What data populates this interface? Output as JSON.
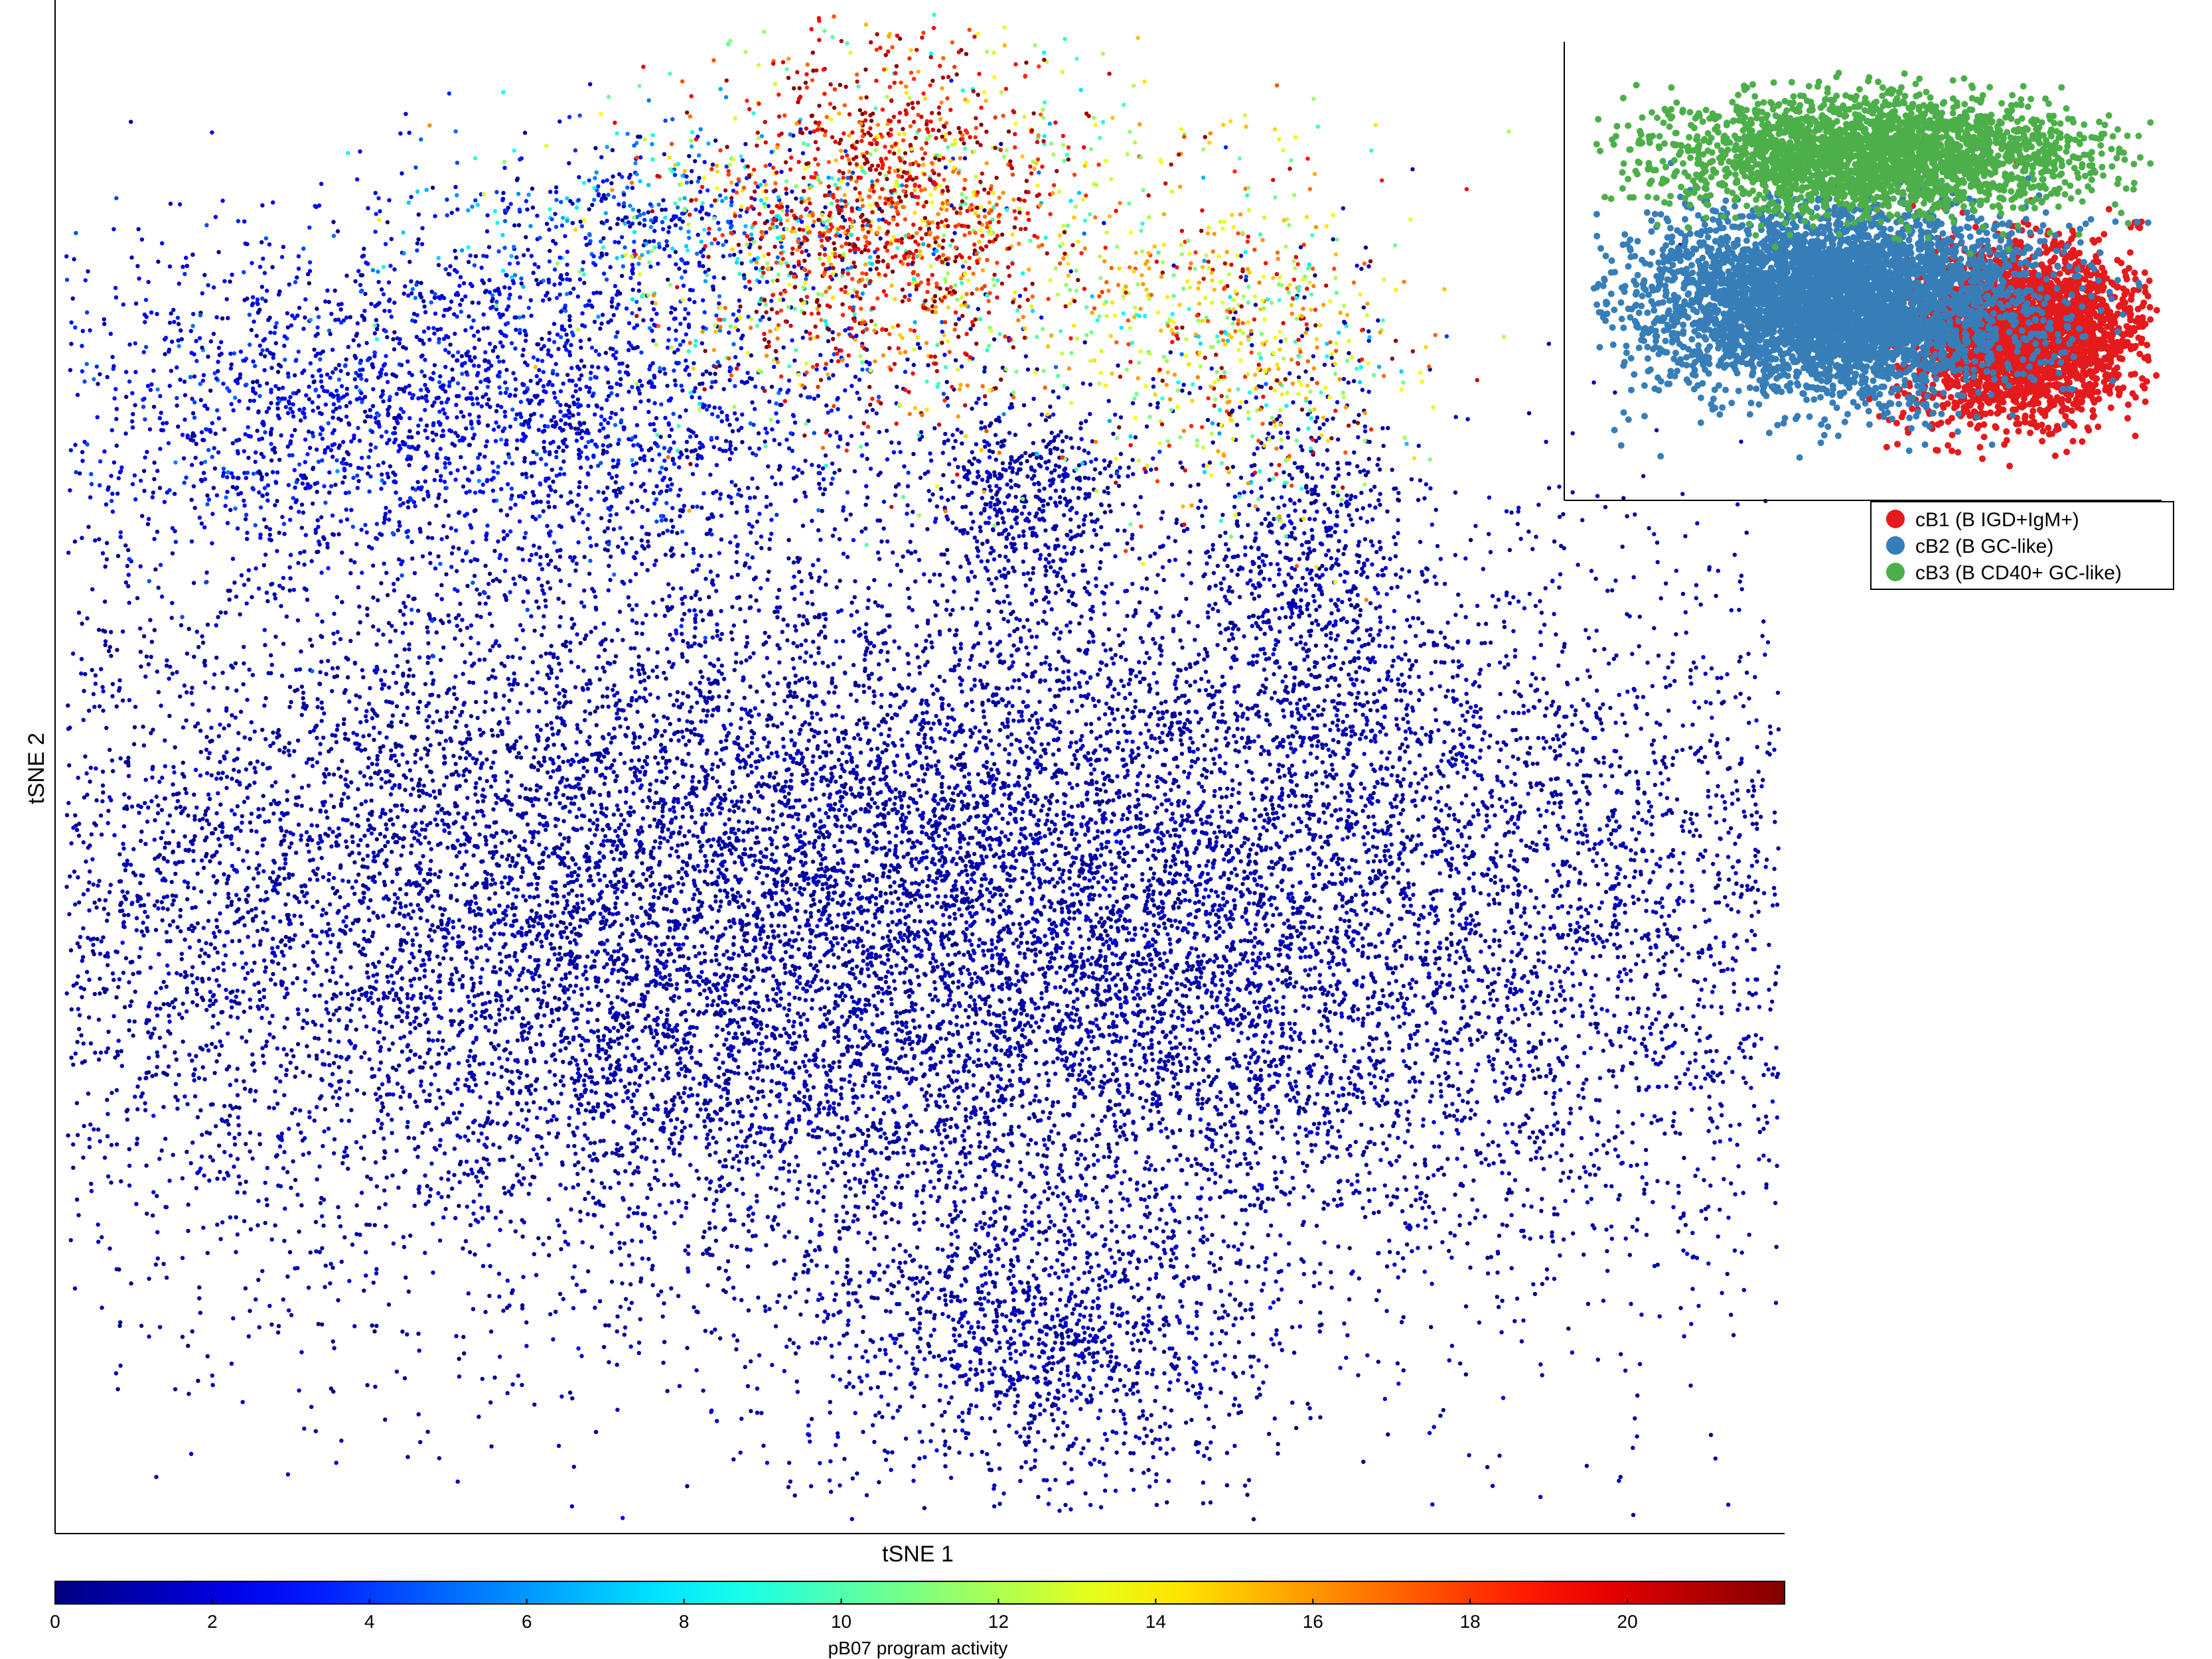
{
  "chart_data": [
    {
      "type": "scatter",
      "title": "",
      "xlabel": "tSNE 1",
      "ylabel": "tSNE 2",
      "xlim": [
        0,
        100
      ],
      "ylim": [
        0,
        100
      ],
      "grid": false,
      "axis_ticks": false,
      "color_variable": "pB07 program activity",
      "colormap": "jet",
      "colorbar": {
        "label": "pB07 program activity",
        "range": [
          0,
          22
        ],
        "ticks": [
          "0",
          "2",
          "4",
          "6",
          "8",
          "10",
          "12",
          "14",
          "16",
          "18",
          "20"
        ],
        "tick_values": [
          0,
          2,
          4,
          6,
          8,
          10,
          12,
          14,
          16,
          18,
          20
        ],
        "position": "bottom",
        "colors": [
          "#00008f",
          "#0000ff",
          "#00ffff",
          "#ffff00",
          "#ff0000",
          "#800000"
        ]
      },
      "clusters": [
        {
          "region": "upper-center",
          "center": [
            48,
            87
          ],
          "spread": [
            5,
            6
          ],
          "n_points": 1100,
          "activity_mean": 19.5,
          "activity_sd": 2.5
        },
        {
          "region": "upper-center-rim",
          "center": [
            49,
            86
          ],
          "spread": [
            9,
            7
          ],
          "n_points": 700,
          "activity_mean": 12.5,
          "activity_sd": 3.5
        },
        {
          "region": "upper-right",
          "center": [
            68,
            78
          ],
          "spread": [
            5,
            6
          ],
          "n_points": 650,
          "activity_mean": 14.5,
          "activity_sd": 4
        },
        {
          "region": "upper-left arm",
          "center": [
            34,
            86
          ],
          "spread": [
            8,
            3
          ],
          "n_points": 500,
          "activity_mean": 3.5,
          "activity_sd": 3
        },
        {
          "region": "upper-left",
          "center": [
            23,
            74
          ],
          "spread": [
            13,
            6
          ],
          "n_points": 2600,
          "activity_mean": 2.2,
          "activity_sd": 1.3
        },
        {
          "region": "top-center mound",
          "center": [
            56,
            68
          ],
          "spread": [
            3,
            3
          ],
          "n_points": 450,
          "activity_mean": 0.9,
          "activity_sd": 0.6
        },
        {
          "region": "right ridge",
          "center": [
            73,
            63
          ],
          "spread": [
            3,
            8
          ],
          "n_points": 600,
          "activity_mean": 0.9,
          "activity_sd": 0.7
        },
        {
          "region": "main body",
          "center": [
            49,
            40
          ],
          "spread": [
            31,
            13
          ],
          "n_points": 18500,
          "activity_mean": 0.8,
          "activity_sd": 0.6
        },
        {
          "region": "bottom lobe",
          "center": [
            57,
            12
          ],
          "spread": [
            7,
            5
          ],
          "n_points": 1100,
          "activity_mean": 0.9,
          "activity_sd": 0.7
        }
      ]
    },
    {
      "type": "scatter",
      "title": "",
      "xlabel": "",
      "ylabel": "",
      "xlim": [
        0,
        100
      ],
      "ylim": [
        0,
        100
      ],
      "grid": false,
      "axis_ticks": false,
      "legend": {
        "placement": "bottom-right",
        "entries": [
          "cB1 (B IGD+IgM+)",
          "cB2 (B GC-like)",
          "cB3 (B CD40+ GC-like)"
        ]
      },
      "series": [
        {
          "name": "cB1 (B IGD+IgM+)",
          "color": "#e41a1c",
          "clusters": [
            {
              "center": [
                76,
                37
              ],
              "spread": [
                10,
                10
              ],
              "n_points": 3000
            }
          ]
        },
        {
          "name": "cB2 (B GC-like)",
          "color": "#377eb8",
          "clusters": [
            {
              "center": [
                43,
                45
              ],
              "spread": [
                17,
                11
              ],
              "n_points": 5000
            }
          ]
        },
        {
          "name": "cB3 (B CD40+ GC-like)",
          "color": "#4daf4a",
          "clusters": [
            {
              "center": [
                50,
                80
              ],
              "spread": [
                19,
                7
              ],
              "n_points": 2600
            }
          ]
        }
      ]
    }
  ]
}
